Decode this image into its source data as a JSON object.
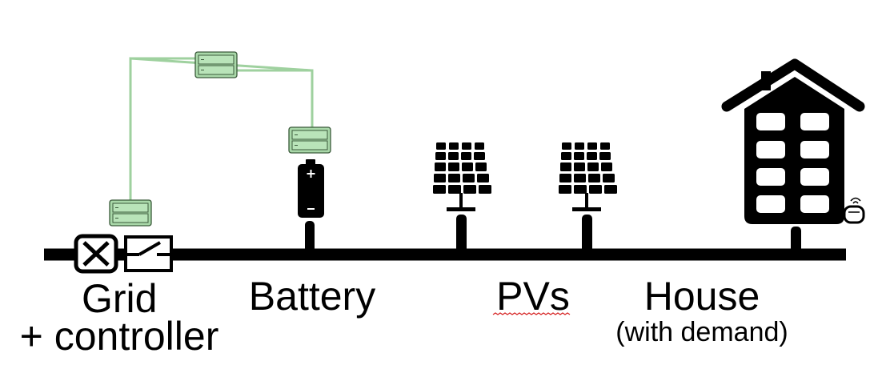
{
  "labels": {
    "grid_line1": "Grid",
    "grid_line2": "+ controller",
    "battery": "Battery",
    "pvs": "PVs",
    "house": "House",
    "house_sub": "(with demand)"
  },
  "colors": {
    "bus": "#000000",
    "link": "#9fd19f",
    "device_fill": "#a9d8a9",
    "device_stroke": "#3a5a3a",
    "spellcheck": "#d62020"
  },
  "icons": [
    "breaker-icon",
    "switch-icon",
    "battery-icon",
    "solar-panel-icon",
    "house-icon",
    "controller-device-icon",
    "meter-icon"
  ]
}
